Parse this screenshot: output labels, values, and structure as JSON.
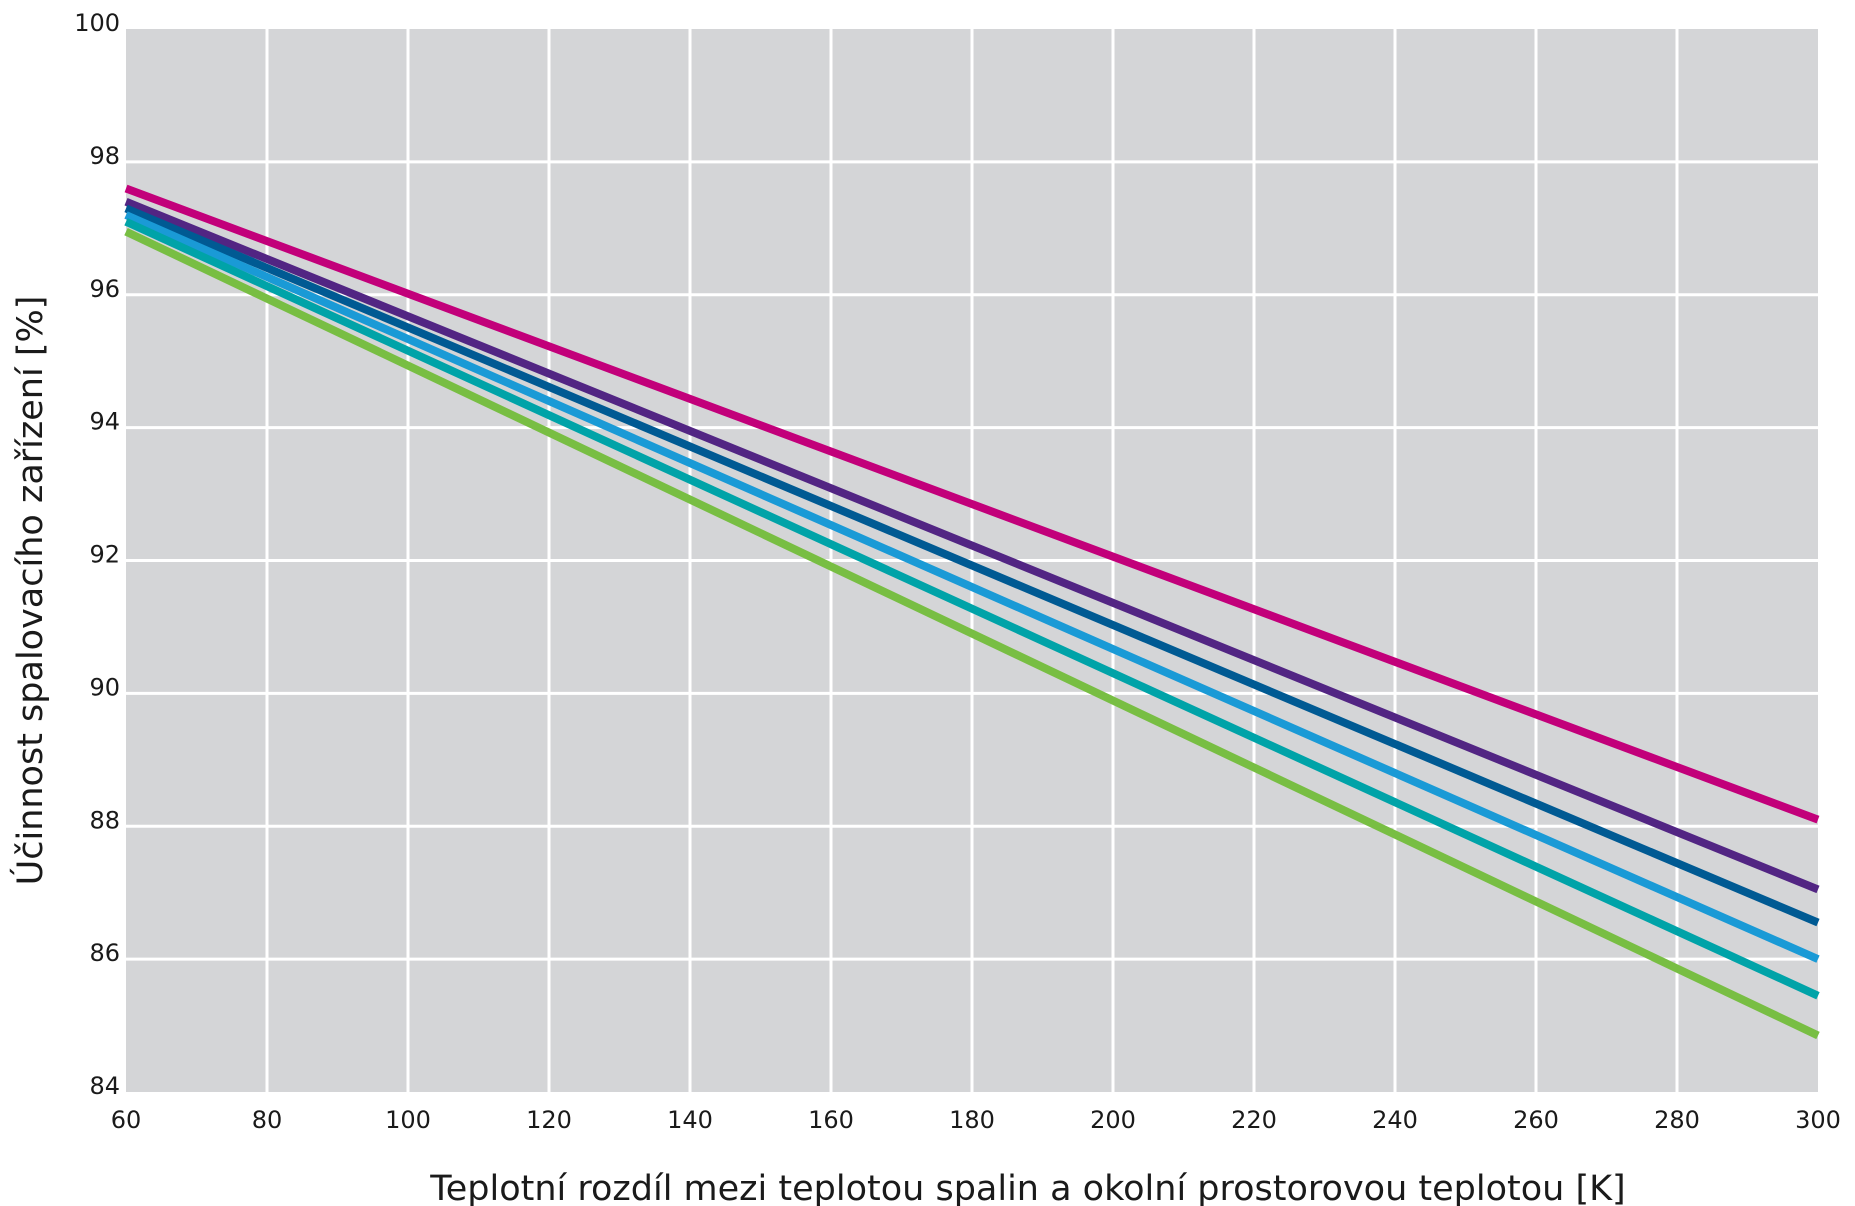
{
  "chart_data": {
    "type": "line",
    "title": "",
    "xlabel": "Teplotní rozdíl mezi teplotou spalin a okolní prostorovou teplotou [K]",
    "ylabel": "Účinnost spalovacího zařízení  [%]",
    "xlim": [
      60,
      300
    ],
    "ylim": [
      84,
      100
    ],
    "xticks": [
      60,
      80,
      100,
      120,
      140,
      160,
      180,
      200,
      220,
      240,
      260,
      280,
      300
    ],
    "yticks": [
      84,
      86,
      88,
      90,
      92,
      94,
      96,
      98,
      100
    ],
    "grid": true,
    "legend": "none",
    "plot_background": "#d4d5d7",
    "series": [
      {
        "color": "#c2007a",
        "x": [
          60,
          300
        ],
        "y": [
          97.6,
          88.1
        ]
      },
      {
        "color": "#522583",
        "x": [
          60,
          300
        ],
        "y": [
          97.4,
          87.05
        ]
      },
      {
        "color": "#005a93",
        "x": [
          60,
          300
        ],
        "y": [
          97.3,
          86.55
        ]
      },
      {
        "color": "#1a9ad6",
        "x": [
          60,
          300
        ],
        "y": [
          97.2,
          86.0
        ]
      },
      {
        "color": "#00a3a8",
        "x": [
          60,
          300
        ],
        "y": [
          97.1,
          85.45
        ]
      },
      {
        "color": "#78be43",
        "x": [
          60,
          300
        ],
        "y": [
          96.95,
          84.85
        ]
      }
    ]
  }
}
